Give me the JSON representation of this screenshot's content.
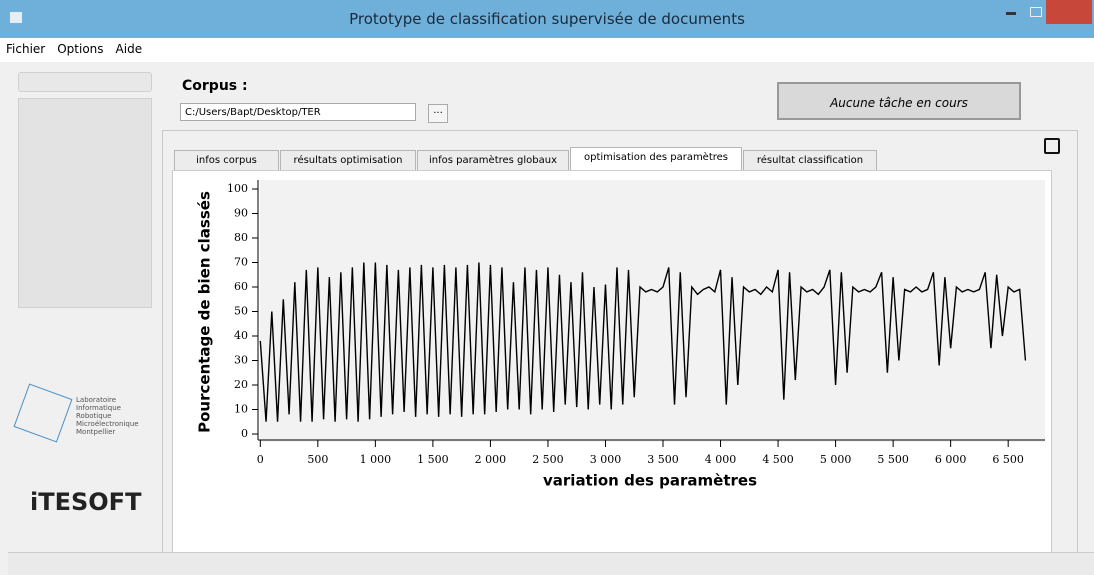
{
  "window": {
    "title": "Prototype de classification supervisée de documents"
  },
  "menu": [
    "Fichier",
    "Options",
    "Aide"
  ],
  "corpus": {
    "label": "Corpus :",
    "path": "C:/Users/Bapt/Desktop/TER",
    "browse": "...",
    "status": "Aucune tâche en cours"
  },
  "tabs": [
    "infos corpus",
    "résultats optimisation",
    "infos paramètres globaux",
    "optimisation des paramètres",
    "résultat classification"
  ],
  "logos": {
    "lab_lines": [
      "Laboratoire",
      "Informatique",
      "Robotique",
      "Microélectronique",
      "Montpellier"
    ],
    "company": "iTESOFT"
  },
  "chart_data": {
    "type": "line",
    "xlabel": "variation des paramètres",
    "ylabel": "Pourcentage de bien classés",
    "x": [
      0,
      50,
      100,
      150,
      200,
      250,
      300,
      350,
      400,
      450,
      500,
      550,
      600,
      650,
      700,
      750,
      800,
      850,
      900,
      950,
      1000,
      1050,
      1100,
      1150,
      1200,
      1250,
      1300,
      1350,
      1400,
      1450,
      1500,
      1550,
      1600,
      1650,
      1700,
      1750,
      1800,
      1850,
      1900,
      1950,
      2000,
      2050,
      2100,
      2150,
      2200,
      2250,
      2300,
      2350,
      2400,
      2450,
      2500,
      2550,
      2600,
      2650,
      2700,
      2750,
      2800,
      2850,
      2900,
      2950,
      3000,
      3050,
      3100,
      3150,
      3200,
      3250,
      3300,
      3350,
      3400,
      3450,
      3500,
      3550,
      3600,
      3650,
      3700,
      3750,
      3800,
      3850,
      3900,
      3950,
      4000,
      4050,
      4100,
      4150,
      4200,
      4250,
      4300,
      4350,
      4400,
      4450,
      4500,
      4550,
      4600,
      4650,
      4700,
      4750,
      4800,
      4850,
      4900,
      4950,
      5000,
      5050,
      5100,
      5150,
      5200,
      5250,
      5300,
      5350,
      5400,
      5450,
      5500,
      5550,
      5600,
      5650,
      5700,
      5750,
      5800,
      5850,
      5900,
      5950,
      6000,
      6050,
      6100,
      6150,
      6200,
      6250,
      6300,
      6350,
      6400,
      6450,
      6500,
      6550,
      6600,
      6650
    ],
    "series": [
      {
        "color": "#000000",
        "values": [
          38,
          5,
          50,
          5,
          55,
          8,
          62,
          5,
          67,
          5,
          68,
          6,
          64,
          5,
          66,
          6,
          68,
          5,
          70,
          6,
          70,
          7,
          69,
          8,
          67,
          9,
          68,
          7,
          69,
          8,
          68,
          7,
          69,
          8,
          68,
          7,
          69,
          8,
          70,
          8,
          69,
          9,
          68,
          10,
          62,
          10,
          68,
          8,
          67,
          10,
          68,
          9,
          65,
          12,
          62,
          11,
          66,
          10,
          60,
          12,
          61,
          10,
          68,
          12,
          67,
          15,
          60,
          58,
          59,
          58,
          60,
          68,
          12,
          66,
          15,
          60,
          57,
          59,
          60,
          58,
          67,
          12,
          64,
          20,
          60,
          58,
          59,
          57,
          60,
          58,
          67,
          14,
          66,
          22,
          60,
          58,
          59,
          57,
          60,
          67,
          20,
          66,
          25,
          60,
          58,
          59,
          58,
          60,
          66,
          25,
          64,
          30,
          59,
          58,
          60,
          58,
          59,
          66,
          28,
          64,
          35,
          60,
          58,
          59,
          58,
          59,
          66,
          35,
          65,
          40,
          60,
          58,
          59,
          30
        ]
      }
    ],
    "xlim": [
      -20,
      6820
    ],
    "ylim": [
      0,
      100
    ],
    "xticks": [
      0,
      500,
      {
        "value": 1000,
        "label": "1 000"
      },
      {
        "value": 1500,
        "label": "1 500"
      },
      {
        "value": 2000,
        "label": "2 000"
      },
      {
        "value": 2500,
        "label": "2 500"
      },
      {
        "value": 3000,
        "label": "3 000"
      },
      {
        "value": 3500,
        "label": "3 500"
      },
      {
        "value": 4000,
        "label": "4 000"
      },
      {
        "value": 4500,
        "label": "4 500"
      },
      {
        "value": 5000,
        "label": "5 000"
      },
      {
        "value": 5500,
        "label": "5 500"
      },
      {
        "value": 6000,
        "label": "6 000"
      },
      {
        "value": 6500,
        "label": "6 500"
      }
    ],
    "yticks": [
      0,
      10,
      20,
      30,
      40,
      50,
      60,
      70,
      80,
      90,
      100
    ]
  }
}
